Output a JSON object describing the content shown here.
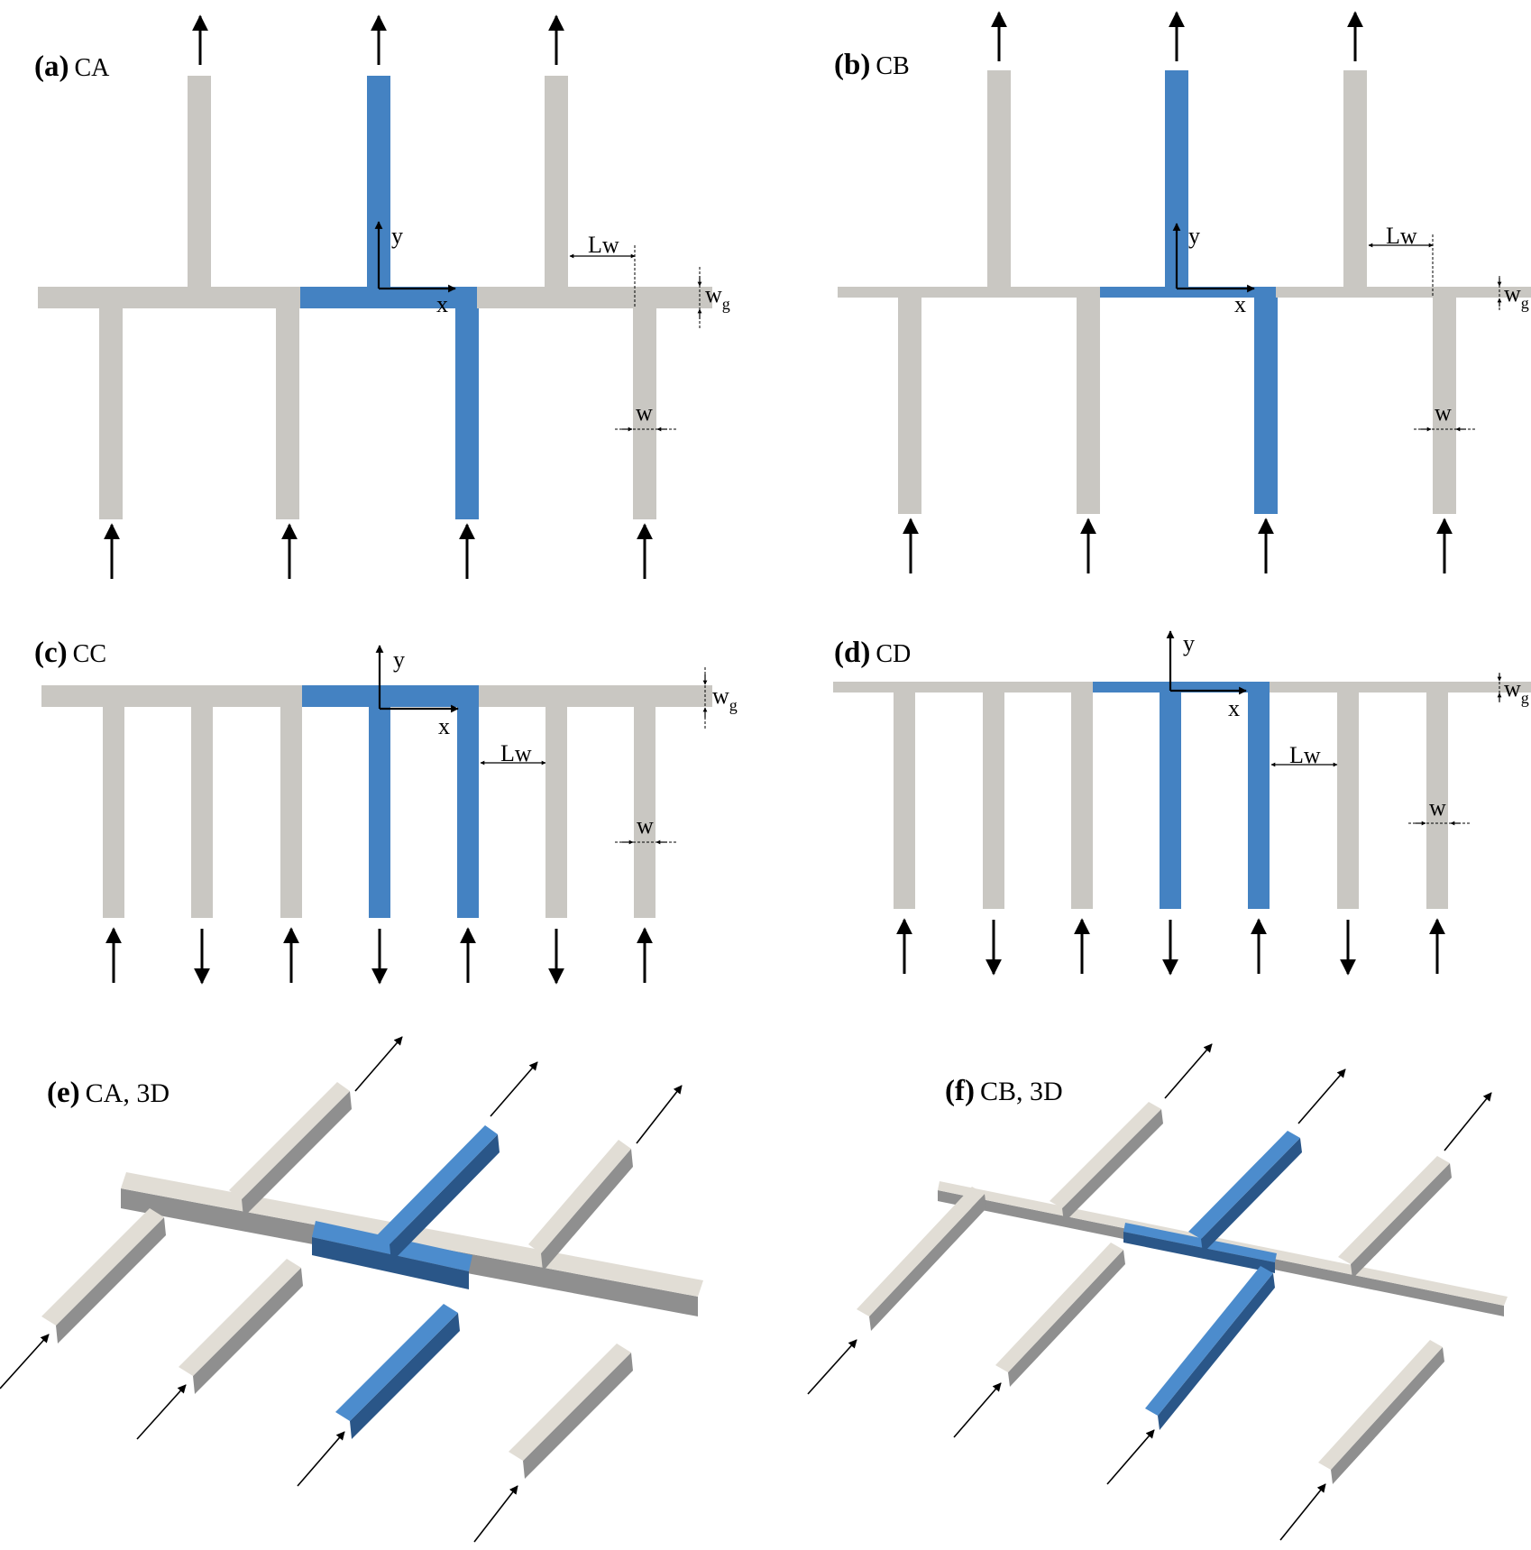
{
  "colors": {
    "wall": "#c9c7c2",
    "highlight": "#4482c2",
    "arrow": "#000000",
    "wall_3d_top": "#e1ddd5",
    "wall_3d_side": "#8f8f8f",
    "highlight_3d_top": "#4c8ccd",
    "highlight_3d_side": "#2a5688"
  },
  "panels": {
    "a": {
      "tag": "(a)",
      "text": "CA"
    },
    "b": {
      "tag": "(b)",
      "text": "CB"
    },
    "c": {
      "tag": "(c)",
      "text": "CC"
    },
    "d": {
      "tag": "(d)",
      "text": "CD"
    },
    "e": {
      "tag": "(e)",
      "text": "CA, 3D"
    },
    "f": {
      "tag": "(f)",
      "text": "CB, 3D"
    }
  },
  "axes": {
    "x": "x",
    "y": "y"
  },
  "dims": {
    "lw": "Lw",
    "w": "w",
    "wg": "w",
    "wg_sub": "g"
  }
}
